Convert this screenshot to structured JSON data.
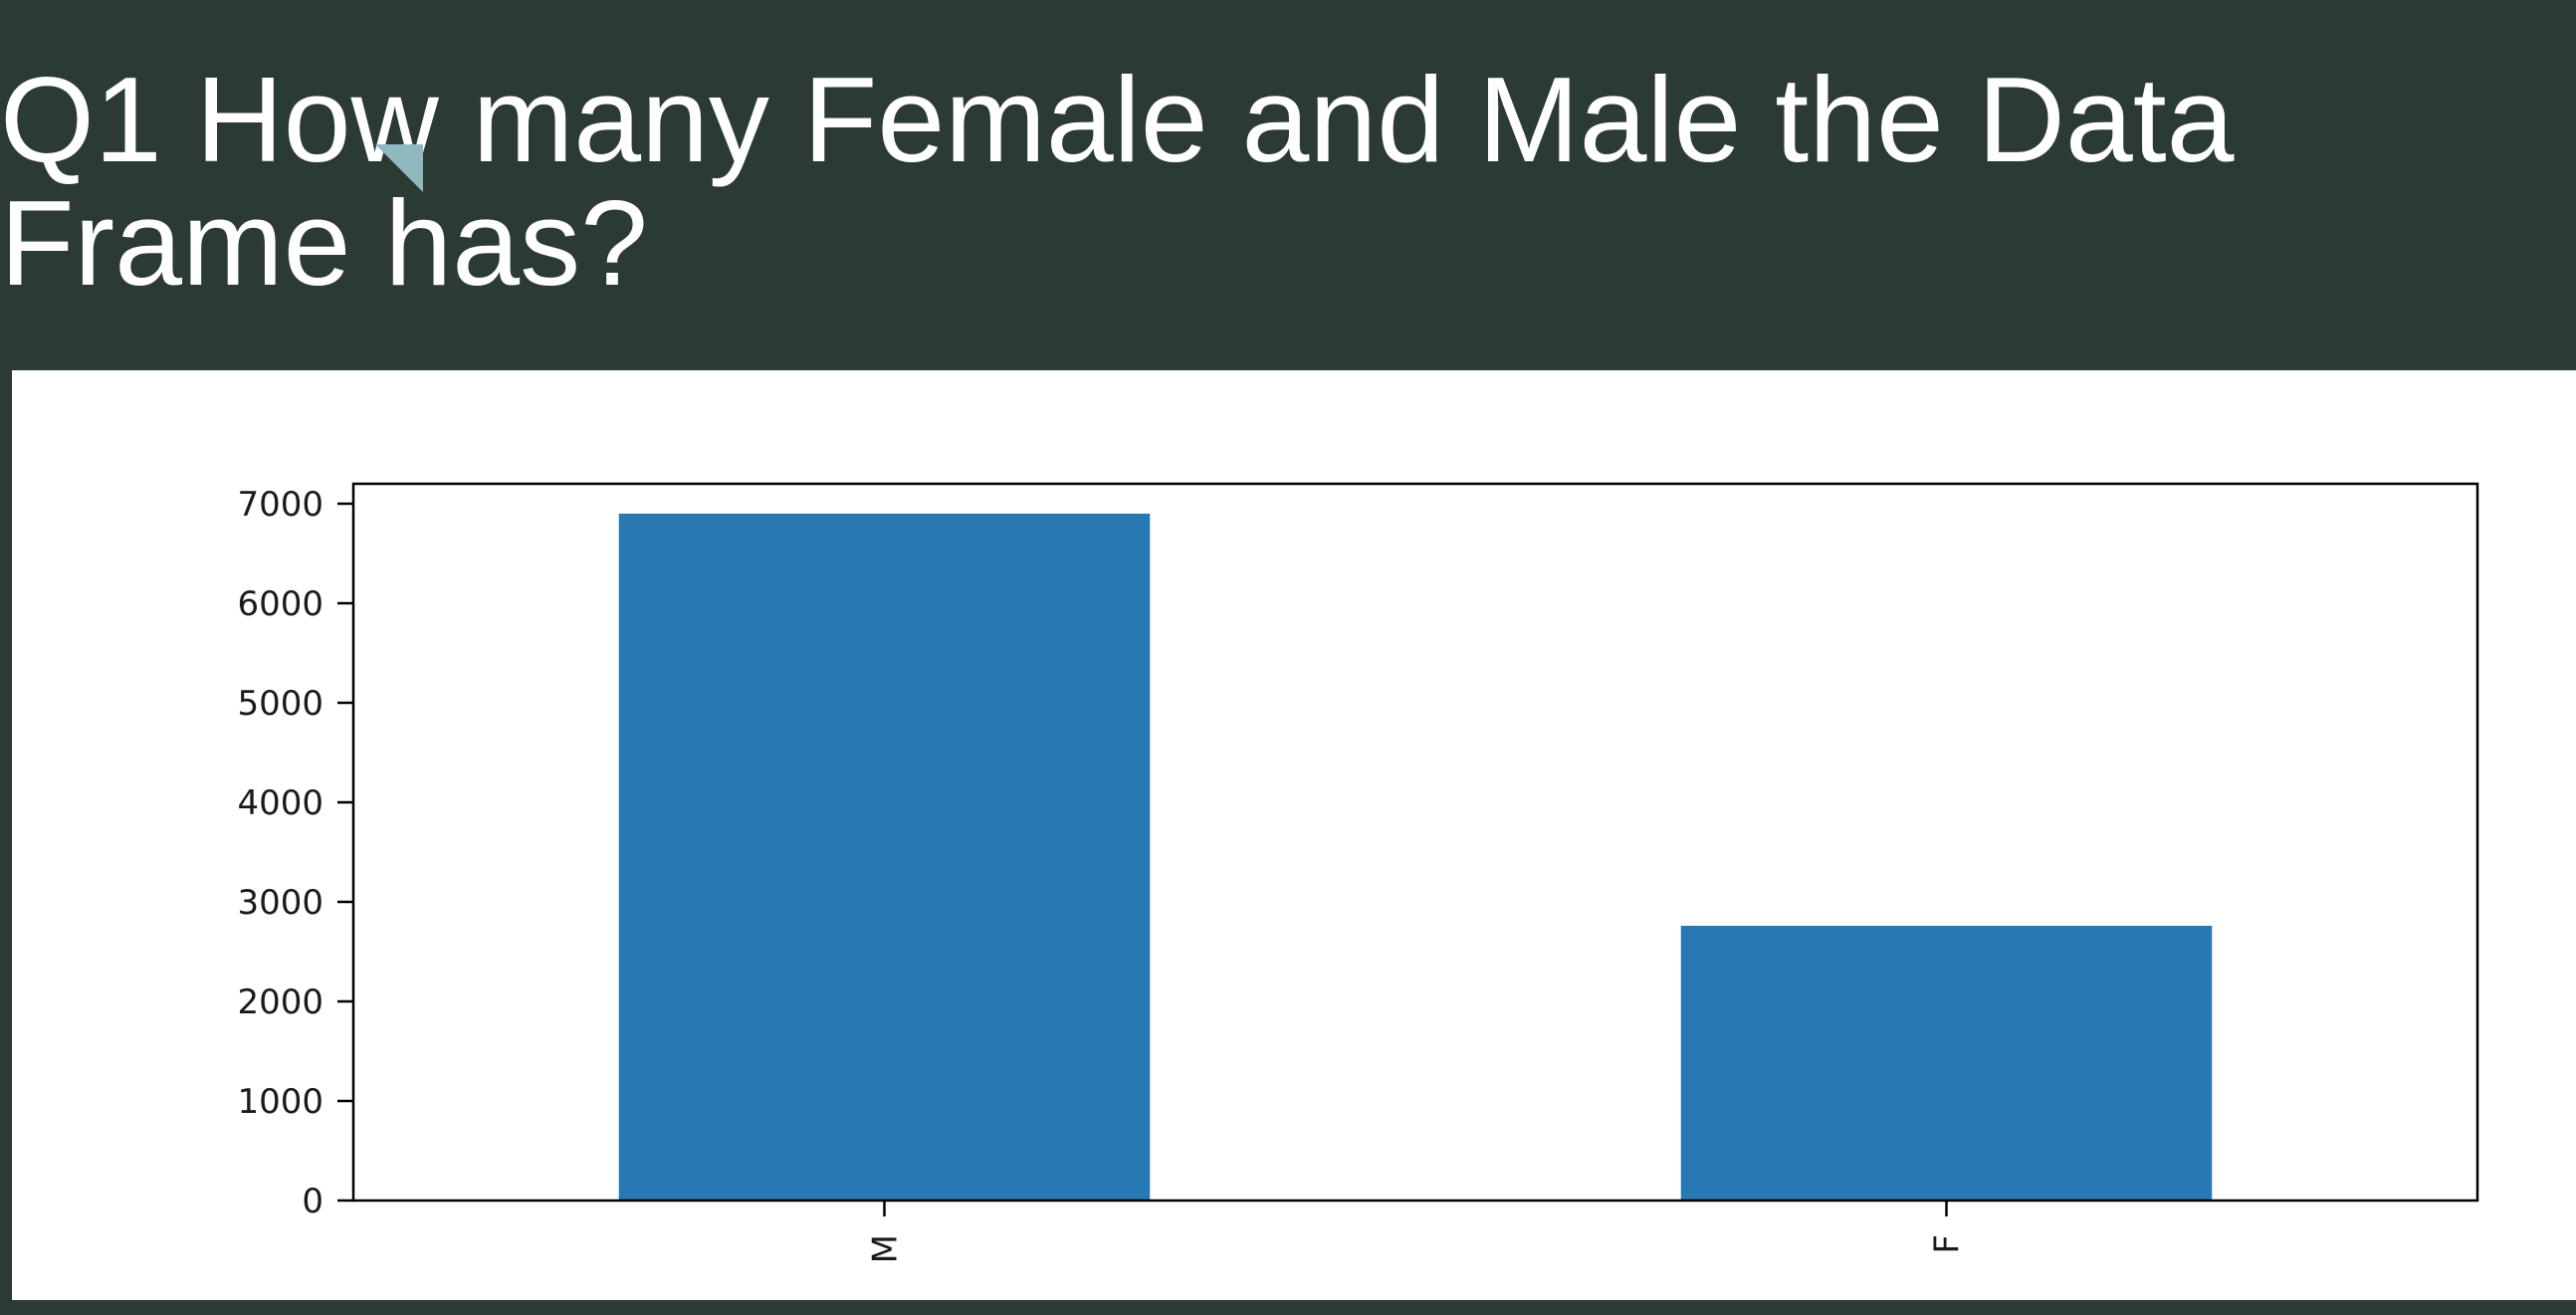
{
  "slide": {
    "title": "Q1 How many Female and Male the Data Frame has?"
  },
  "colors": {
    "background": "#2c3a34",
    "title_text": "#ffffff",
    "accent_mark": "#8fb8bf",
    "bar_fill": "#2878b4",
    "panel": "#ffffff"
  },
  "chart_data": {
    "type": "bar",
    "categories": [
      "M",
      "F"
    ],
    "values": [
      6900,
      2760
    ],
    "ylim": [
      0,
      7200
    ],
    "yticks": [
      0,
      1000,
      2000,
      3000,
      4000,
      5000,
      6000,
      7000
    ],
    "title": "",
    "xlabel": "",
    "ylabel": "",
    "x_tick_rotation": "vertical",
    "grid": false,
    "legend": "none"
  }
}
